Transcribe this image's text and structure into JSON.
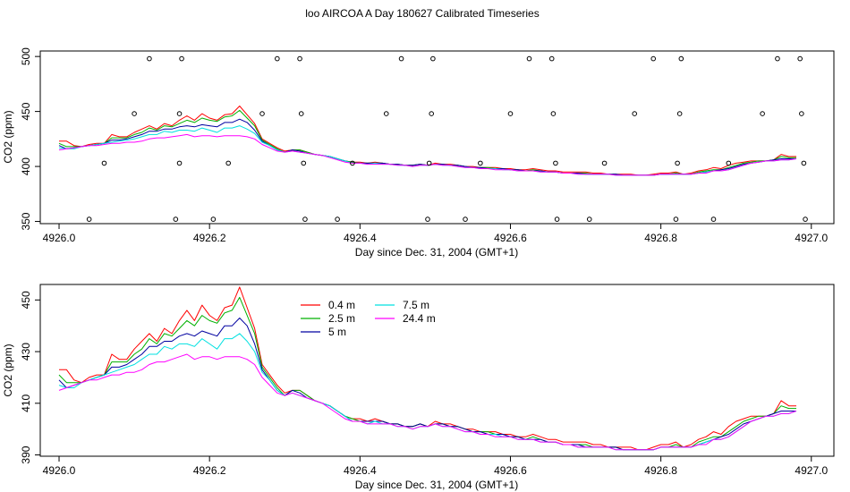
{
  "figure": {
    "title": "loo AIRCOA A  Day 180627  Calibrated Timeseries"
  },
  "chart_data": [
    {
      "type": "line",
      "ylabel": "CO2 (ppm)",
      "xlabel": "Day since Dec. 31, 2004 (GMT+1)",
      "xlim": [
        4925.975,
        4927.03
      ],
      "ylim": [
        348,
        505
      ],
      "x_ticks": [
        4926.0,
        4926.2,
        4926.4,
        4926.6,
        4926.8,
        4927.0
      ],
      "x_tick_labels": [
        "4926.0",
        "4926.2",
        "4926.4",
        "4926.6",
        "4926.8",
        "4927.0"
      ],
      "y_ticks": [
        350,
        400,
        450,
        500
      ],
      "y_tick_labels": [
        "350",
        "400",
        "450",
        "500"
      ],
      "series_colors": [
        "#ff0000",
        "#00b000",
        "#0000a0",
        "#00e0e0",
        "#ff00ff"
      ],
      "status_points": {
        "x": [
          4926.04,
          4926.06,
          4926.1,
          4926.12,
          4926.155,
          4926.16,
          4926.16,
          4926.163,
          4926.205,
          4926.225,
          4926.27,
          4926.29,
          4926.32,
          4926.322,
          4926.325,
          4926.327,
          4926.37,
          4926.39,
          4926.435,
          4926.455,
          4926.49,
          4926.492,
          4926.495,
          4926.497,
          4926.54,
          4926.56,
          4926.6,
          4926.625,
          4926.655,
          4926.657,
          4926.66,
          4926.662,
          4926.705,
          4926.725,
          4926.765,
          4926.79,
          4926.82,
          4926.822,
          4926.825,
          4926.827,
          4926.87,
          4926.89,
          4926.935,
          4926.955,
          4926.985,
          4926.987,
          4926.99,
          4926.992
        ],
        "y": [
          352,
          403,
          448,
          498,
          352,
          403,
          448,
          498,
          352,
          403,
          448,
          498,
          498,
          448,
          403,
          352,
          352,
          403,
          448,
          498,
          352,
          403,
          448,
          498,
          352,
          403,
          448,
          498,
          498,
          448,
          403,
          352,
          352,
          403,
          448,
          498,
          352,
          403,
          448,
          498,
          352,
          403,
          448,
          498,
          498,
          448,
          403,
          352
        ]
      }
    },
    {
      "type": "line",
      "ylabel": "CO2 (ppm)",
      "xlabel": "Day since Dec. 31, 2004 (GMT+1)",
      "xlim": [
        4925.975,
        4927.03
      ],
      "ylim": [
        389.5,
        456
      ],
      "x_ticks": [
        4926.0,
        4926.2,
        4926.4,
        4926.6,
        4926.8,
        4927.0
      ],
      "x_tick_labels": [
        "4926.0",
        "4926.2",
        "4926.4",
        "4926.6",
        "4926.8",
        "4927.0"
      ],
      "y_ticks": [
        390,
        410,
        430,
        450
      ],
      "y_tick_labels": [
        "390",
        "410",
        "430",
        "450"
      ],
      "legend_position": "top-center",
      "x_start": 4926.0,
      "x_step": 0.01,
      "series": [
        {
          "name": "0.4 m",
          "color": "#ff0000",
          "values": [
            423,
            423,
            419,
            418,
            420,
            421,
            421,
            429,
            427,
            427,
            431,
            434,
            437,
            434,
            439,
            437,
            442,
            446,
            442,
            448,
            444,
            442,
            447,
            448,
            455,
            447,
            439,
            425,
            421,
            417,
            414,
            415,
            415,
            413,
            411,
            410,
            409,
            407,
            405,
            404,
            404,
            403,
            404,
            403,
            402,
            402,
            401,
            401,
            402,
            401,
            403,
            402,
            402,
            401,
            400,
            400,
            399,
            399,
            399,
            398,
            398,
            397,
            397,
            398,
            397,
            396,
            396,
            395,
            395,
            395,
            395,
            394,
            394,
            393,
            393,
            393,
            393,
            392,
            392,
            393,
            394,
            394,
            395,
            393,
            394,
            396,
            397,
            399,
            398,
            401,
            403,
            404,
            405,
            405,
            405,
            406,
            411,
            409,
            409
          ]
        },
        {
          "name": "2.5 m",
          "color": "#00b000",
          "values": [
            421,
            418,
            418,
            418,
            419,
            420,
            421,
            426,
            426,
            426,
            429,
            431,
            435,
            433,
            437,
            436,
            439,
            442,
            440,
            444,
            442,
            441,
            445,
            446,
            451,
            444,
            437,
            424,
            420,
            416,
            413,
            415,
            415,
            413,
            411,
            410,
            409,
            407,
            405,
            404,
            403,
            403,
            403,
            403,
            402,
            402,
            401,
            401,
            402,
            401,
            402,
            402,
            401,
            401,
            400,
            399,
            399,
            399,
            398,
            398,
            397,
            397,
            396,
            397,
            396,
            395,
            395,
            394,
            394,
            394,
            394,
            393,
            393,
            393,
            393,
            392,
            392,
            392,
            392,
            392,
            393,
            393,
            394,
            393,
            393,
            395,
            396,
            397,
            397,
            399,
            401,
            403,
            404,
            405,
            405,
            406,
            409,
            408,
            408
          ]
        },
        {
          "name": "5 m",
          "color": "#0000a0",
          "values": [
            419,
            416,
            417,
            418,
            419,
            420,
            421,
            424,
            424,
            425,
            427,
            429,
            432,
            432,
            434,
            434,
            436,
            437,
            436,
            438,
            437,
            436,
            440,
            440,
            443,
            440,
            433,
            423,
            419,
            415,
            413,
            415,
            414,
            412,
            411,
            410,
            409,
            407,
            405,
            403,
            403,
            403,
            403,
            403,
            402,
            402,
            401,
            401,
            402,
            401,
            402,
            402,
            401,
            401,
            400,
            399,
            399,
            398,
            398,
            398,
            397,
            397,
            396,
            396,
            396,
            395,
            395,
            394,
            394,
            394,
            393,
            393,
            393,
            393,
            393,
            392,
            392,
            392,
            392,
            392,
            393,
            393,
            393,
            393,
            393,
            394,
            395,
            396,
            397,
            398,
            400,
            402,
            403,
            404,
            405,
            406,
            407,
            407,
            407
          ]
        },
        {
          "name": "7.5 m",
          "color": "#00e0e0",
          "values": [
            417,
            416,
            416,
            418,
            419,
            420,
            421,
            422,
            423,
            424,
            425,
            427,
            429,
            429,
            432,
            431,
            433,
            433,
            432,
            435,
            433,
            431,
            435,
            435,
            437,
            434,
            430,
            422,
            419,
            415,
            413,
            414,
            413,
            412,
            411,
            410,
            409,
            407,
            405,
            403,
            403,
            402,
            403,
            402,
            402,
            401,
            401,
            400,
            401,
            401,
            402,
            401,
            401,
            400,
            399,
            399,
            398,
            398,
            398,
            397,
            397,
            396,
            396,
            396,
            395,
            395,
            395,
            394,
            394,
            393,
            393,
            393,
            393,
            393,
            392,
            392,
            392,
            392,
            392,
            392,
            393,
            393,
            393,
            393,
            393,
            394,
            395,
            396,
            396,
            397,
            399,
            401,
            403,
            404,
            405,
            405,
            406,
            406,
            407
          ]
        },
        {
          "name": "24.4 m",
          "color": "#ff00ff",
          "values": [
            415,
            416,
            417,
            418,
            419,
            419,
            420,
            421,
            421,
            422,
            422,
            423,
            425,
            426,
            426,
            427,
            428,
            429,
            427,
            428,
            428,
            427,
            428,
            428,
            428,
            427,
            425,
            420,
            417,
            414,
            413,
            414,
            413,
            412,
            411,
            410,
            408,
            406,
            404,
            403,
            403,
            402,
            402,
            402,
            402,
            401,
            401,
            400,
            401,
            401,
            402,
            401,
            401,
            400,
            399,
            399,
            398,
            398,
            397,
            397,
            397,
            396,
            396,
            396,
            395,
            395,
            395,
            394,
            394,
            393,
            393,
            393,
            393,
            393,
            392,
            392,
            392,
            392,
            392,
            392,
            393,
            393,
            393,
            393,
            393,
            394,
            394,
            396,
            396,
            397,
            399,
            401,
            403,
            404,
            405,
            405,
            406,
            406,
            407
          ]
        }
      ]
    }
  ]
}
